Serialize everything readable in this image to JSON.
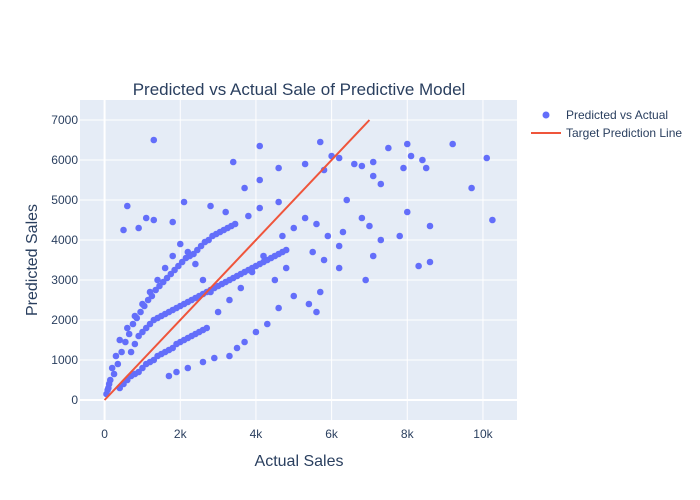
{
  "chart_data": {
    "type": "scatter",
    "title": "Predicted vs Actual Sale of Predictive Model",
    "xlabel": "Actual Sales",
    "ylabel": "Predicted Sales",
    "xlim": [
      -650,
      10900
    ],
    "ylim": [
      -500,
      7500
    ],
    "xticks": [
      0,
      2000,
      4000,
      6000,
      8000,
      10000
    ],
    "xtick_labels": [
      "0",
      "2k",
      "4k",
      "6k",
      "8k",
      "10k"
    ],
    "yticks": [
      0,
      1000,
      2000,
      3000,
      4000,
      5000,
      6000,
      7000
    ],
    "ytick_labels": [
      "0",
      "1000",
      "2000",
      "3000",
      "4000",
      "5000",
      "6000",
      "7000"
    ],
    "grid": true,
    "legend_position": "right",
    "series": [
      {
        "name": "Predicted vs Actual",
        "kind": "markers",
        "color": "#636efa",
        "points": [
          [
            1300,
            6500
          ],
          [
            4100,
            6350
          ],
          [
            5700,
            6450
          ],
          [
            6000,
            6100
          ],
          [
            6200,
            6050
          ],
          [
            6600,
            5900
          ],
          [
            7100,
            5950
          ],
          [
            7500,
            6300
          ],
          [
            8000,
            6400
          ],
          [
            8100,
            6100
          ],
          [
            8400,
            6000
          ],
          [
            9200,
            6400
          ],
          [
            10100,
            6050
          ],
          [
            9700,
            5300
          ],
          [
            10250,
            4500
          ],
          [
            8600,
            4350
          ],
          [
            8300,
            3350
          ],
          [
            8600,
            3450
          ],
          [
            7100,
            3600
          ],
          [
            6900,
            3000
          ],
          [
            7300,
            4000
          ],
          [
            7800,
            4100
          ],
          [
            8000,
            4700
          ],
          [
            7900,
            5800
          ],
          [
            8500,
            5800
          ],
          [
            7300,
            5400
          ],
          [
            7100,
            5600
          ],
          [
            6800,
            5850
          ],
          [
            6400,
            5000
          ],
          [
            6800,
            4550
          ],
          [
            7000,
            4350
          ],
          [
            6300,
            4200
          ],
          [
            5800,
            5750
          ],
          [
            5300,
            5900
          ],
          [
            4600,
            5800
          ],
          [
            4100,
            5500
          ],
          [
            3700,
            5300
          ],
          [
            3400,
            5950
          ],
          [
            4600,
            4950
          ],
          [
            4100,
            4800
          ],
          [
            3800,
            4600
          ],
          [
            3200,
            4700
          ],
          [
            2800,
            4850
          ],
          [
            2100,
            4950
          ],
          [
            1800,
            4450
          ],
          [
            1300,
            4500
          ],
          [
            1100,
            4550
          ],
          [
            900,
            4300
          ],
          [
            600,
            4850
          ],
          [
            500,
            4250
          ],
          [
            4700,
            4100
          ],
          [
            5000,
            4300
          ],
          [
            5300,
            4550
          ],
          [
            5600,
            4400
          ],
          [
            5900,
            4100
          ],
          [
            6200,
            3850
          ],
          [
            5500,
            3700
          ],
          [
            5800,
            3500
          ],
          [
            6200,
            3300
          ],
          [
            5700,
            2700
          ],
          [
            5400,
            2400
          ],
          [
            5600,
            2200
          ],
          [
            5000,
            2600
          ],
          [
            4600,
            2300
          ],
          [
            4300,
            1900
          ],
          [
            4000,
            1700
          ],
          [
            3700,
            1450
          ],
          [
            3500,
            1300
          ],
          [
            3300,
            1100
          ],
          [
            2900,
            1050
          ],
          [
            2600,
            950
          ],
          [
            2200,
            800
          ],
          [
            1900,
            700
          ],
          [
            1700,
            600
          ],
          [
            4800,
            3300
          ],
          [
            4500,
            3000
          ],
          [
            4200,
            3600
          ],
          [
            3900,
            3200
          ],
          [
            3600,
            2800
          ],
          [
            3300,
            2500
          ],
          [
            3000,
            2200
          ],
          [
            2800,
            2700
          ],
          [
            2600,
            3000
          ],
          [
            2400,
            3400
          ],
          [
            2200,
            3700
          ],
          [
            2000,
            3900
          ],
          [
            1800,
            3600
          ],
          [
            1600,
            3300
          ],
          [
            1400,
            3000
          ],
          [
            1200,
            2700
          ],
          [
            1000,
            2400
          ],
          [
            800,
            2100
          ],
          [
            600,
            1800
          ],
          [
            400,
            1500
          ],
          [
            300,
            1100
          ],
          [
            200,
            800
          ],
          [
            150,
            500
          ],
          [
            100,
            300
          ],
          [
            50,
            150
          ],
          [
            80,
            250
          ],
          [
            120,
            400
          ],
          [
            250,
            650
          ],
          [
            350,
            900
          ],
          [
            450,
            1200
          ],
          [
            550,
            1450
          ],
          [
            650,
            1650
          ],
          [
            750,
            1900
          ],
          [
            850,
            2050
          ],
          [
            950,
            2200
          ],
          [
            1050,
            2350
          ],
          [
            1150,
            2500
          ],
          [
            1250,
            2600
          ],
          [
            1350,
            2750
          ],
          [
            1450,
            2850
          ],
          [
            1550,
            2950
          ],
          [
            1650,
            3050
          ],
          [
            1750,
            3150
          ],
          [
            1850,
            3250
          ],
          [
            1950,
            3350
          ],
          [
            2050,
            3450
          ],
          [
            2150,
            3550
          ],
          [
            2250,
            3600
          ],
          [
            2350,
            3650
          ],
          [
            2450,
            3750
          ],
          [
            2550,
            3850
          ],
          [
            2650,
            3950
          ],
          [
            2750,
            4000
          ],
          [
            2850,
            4100
          ],
          [
            2950,
            4150
          ],
          [
            3050,
            4200
          ],
          [
            3150,
            4250
          ],
          [
            3250,
            4300
          ],
          [
            3350,
            4350
          ],
          [
            3450,
            4400
          ],
          [
            400,
            300
          ],
          [
            500,
            400
          ],
          [
            600,
            500
          ],
          [
            700,
            600
          ],
          [
            800,
            650
          ],
          [
            900,
            700
          ],
          [
            1000,
            800
          ],
          [
            1100,
            900
          ],
          [
            1200,
            950
          ],
          [
            1300,
            1000
          ],
          [
            1400,
            1100
          ],
          [
            1500,
            1150
          ],
          [
            1600,
            1200
          ],
          [
            1700,
            1250
          ],
          [
            1800,
            1300
          ],
          [
            1900,
            1400
          ],
          [
            2000,
            1450
          ],
          [
            2100,
            1500
          ],
          [
            2200,
            1550
          ],
          [
            2300,
            1600
          ],
          [
            2400,
            1650
          ],
          [
            2500,
            1700
          ],
          [
            2600,
            1750
          ],
          [
            2700,
            1800
          ],
          [
            700,
            1200
          ],
          [
            800,
            1400
          ],
          [
            900,
            1600
          ],
          [
            1000,
            1700
          ],
          [
            1100,
            1800
          ],
          [
            1200,
            1900
          ],
          [
            1300,
            2000
          ],
          [
            1400,
            2050
          ],
          [
            1500,
            2100
          ],
          [
            1600,
            2150
          ],
          [
            1700,
            2200
          ],
          [
            1800,
            2250
          ],
          [
            1900,
            2300
          ],
          [
            2000,
            2350
          ],
          [
            2100,
            2400
          ],
          [
            2200,
            2450
          ],
          [
            2300,
            2500
          ],
          [
            2400,
            2550
          ],
          [
            2500,
            2600
          ],
          [
            2600,
            2650
          ],
          [
            2700,
            2700
          ],
          [
            2800,
            2750
          ],
          [
            2900,
            2800
          ],
          [
            3000,
            2850
          ],
          [
            3100,
            2900
          ],
          [
            3200,
            2950
          ],
          [
            3300,
            3000
          ],
          [
            3400,
            3050
          ],
          [
            3500,
            3100
          ],
          [
            3600,
            3150
          ],
          [
            3700,
            3200
          ],
          [
            3800,
            3250
          ],
          [
            3900,
            3300
          ],
          [
            4000,
            3350
          ],
          [
            4100,
            3400
          ],
          [
            4200,
            3450
          ],
          [
            4300,
            3500
          ],
          [
            4400,
            3550
          ],
          [
            4500,
            3600
          ],
          [
            4600,
            3650
          ],
          [
            4700,
            3700
          ],
          [
            4800,
            3750
          ]
        ]
      },
      {
        "name": "Target Prediction Line",
        "kind": "line",
        "color": "#ef553b",
        "x": [
          0,
          7000
        ],
        "y": [
          0,
          7000
        ]
      }
    ]
  }
}
